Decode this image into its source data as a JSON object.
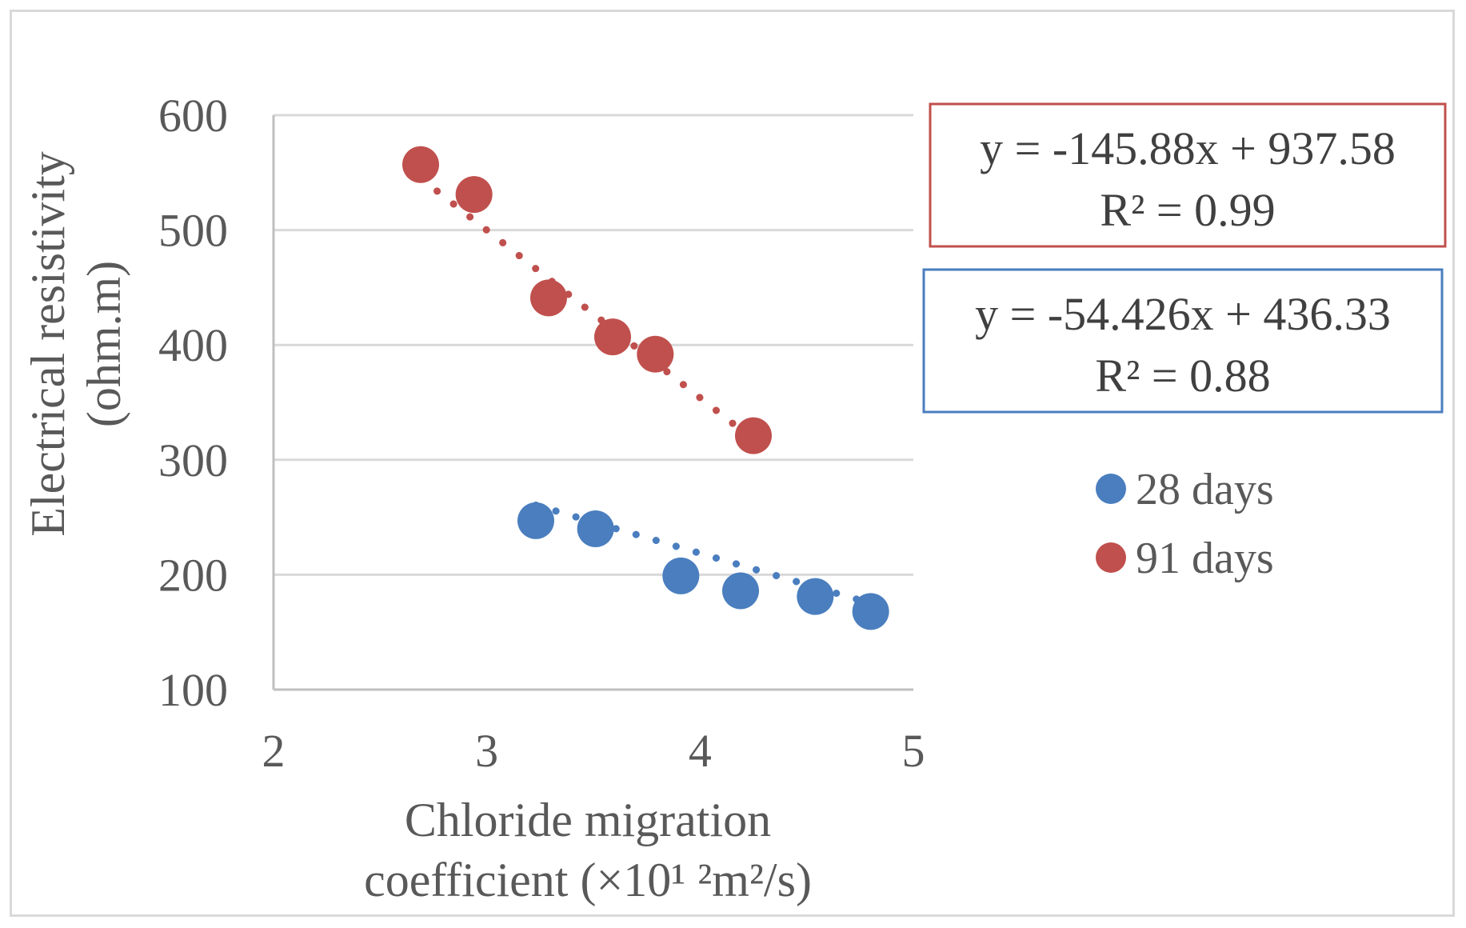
{
  "chart_data": {
    "type": "scatter",
    "title": "",
    "xlabel_lines": [
      "Chloride migration",
      "coefficient (×10¹ ²m²/s)"
    ],
    "ylabel_lines": [
      "Electrical resistivity",
      "(ohm.m)"
    ],
    "xlim": [
      2,
      5
    ],
    "ylim": [
      100,
      600
    ],
    "xticks": [
      2,
      3,
      4,
      5
    ],
    "yticks": [
      100,
      200,
      300,
      400,
      500,
      600
    ],
    "xtick_labels": [
      "2",
      "3",
      "4",
      "5"
    ],
    "ytick_labels": [
      "100",
      "200",
      "300",
      "400",
      "500",
      "600"
    ],
    "grid": "horizontal",
    "legend_position": "right",
    "series": [
      {
        "name": "28 days",
        "color": "#4a7ebf",
        "x": [
          3.23,
          3.51,
          3.91,
          4.19,
          4.54,
          4.8
        ],
        "y": [
          247,
          240,
          199,
          186,
          181,
          168
        ],
        "trendline": {
          "type": "linear",
          "style": "dotted",
          "slope": -54.426,
          "intercept": 436.33
        },
        "equation": "y = -54.426x + 436.33",
        "r2": "R² = 0.88"
      },
      {
        "name": "91 days",
        "color": "#c0504d",
        "x": [
          2.69,
          2.94,
          3.29,
          3.59,
          3.79,
          4.25
        ],
        "y": [
          557,
          531,
          441,
          407,
          392,
          321
        ],
        "trendline": {
          "type": "linear",
          "style": "dotted",
          "slope": -145.88,
          "intercept": 937.58
        },
        "equation": "y = -145.88x + 937.58",
        "r2": "R² = 0.99"
      }
    ]
  }
}
